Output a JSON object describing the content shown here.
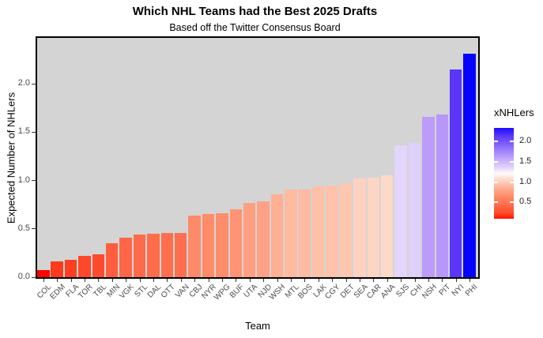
{
  "title": "Which NHL Teams had the Best 2025 Drafts",
  "subtitle": "Based off the Twitter Consensus Board",
  "chart_data": {
    "type": "bar",
    "title": "Which NHL Teams had the Best 2025 Drafts",
    "subtitle": "Based off the Twitter Consensus Board",
    "xlabel": "Team",
    "ylabel": "Expected Number of NHLers",
    "ylim": [
      0,
      2.4
    ],
    "grid": "off",
    "panel_background": "#D4D4D4",
    "y_tick_labels": [
      "0.0",
      "0.5",
      "1.0",
      "1.5",
      "2.0"
    ],
    "categories": [
      "COL",
      "EDM",
      "FLA",
      "TOR",
      "TBL",
      "MIN",
      "VGK",
      "STL",
      "DAL",
      "OTT",
      "VAN",
      "CBJ",
      "NYR",
      "WPG",
      "BUF",
      "UTA",
      "NJD",
      "WSH",
      "MTL",
      "BOS",
      "LAK",
      "CGY",
      "DET",
      "SEA",
      "CAR",
      "ANA",
      "SJS",
      "CHI",
      "NSH",
      "PIT",
      "NYI",
      "PHI"
    ],
    "values": [
      0.07,
      0.16,
      0.18,
      0.22,
      0.24,
      0.35,
      0.41,
      0.44,
      0.45,
      0.46,
      0.46,
      0.64,
      0.65,
      0.66,
      0.7,
      0.77,
      0.78,
      0.86,
      0.91,
      0.91,
      0.94,
      0.95,
      0.97,
      1.02,
      1.03,
      1.05,
      1.36,
      1.39,
      1.66,
      1.68,
      2.15,
      2.31
    ],
    "bar_colors": [
      "#FA0500",
      "#FF3A1D",
      "#FF3F22",
      "#FF482A",
      "#FF4C2E",
      "#FF5E3E",
      "#FF6646",
      "#FF6B4A",
      "#FF6C4C",
      "#FF6F4E",
      "#FF6F4F",
      "#FF8A68",
      "#FF8B69",
      "#FF8D6C",
      "#FF9374",
      "#FF9F81",
      "#FFA184",
      "#FFB092",
      "#FFBAA0",
      "#FFBAA1",
      "#FFC0A8",
      "#FFC2AB",
      "#FFC6B0",
      "#FDD2C0",
      "#FDD5C4",
      "#FDD9CA",
      "#E3D5FB",
      "#DFD0FB",
      "#BC9CFA",
      "#B897FA",
      "#5B36F9",
      "#0503FF"
    ],
    "legend": {
      "title": "xNHLers",
      "position": "right",
      "tick_labels": [
        "2.0",
        "1.5",
        "1.0",
        "0.5"
      ],
      "value_range": [
        0.095,
        2.34
      ],
      "gradient_low_color": "#FF1500",
      "gradient_mid_color": "#FDFBFA",
      "gradient_high_color": "#1A0DFE",
      "gradient_stops": [
        {
          "pos": 0,
          "color": "#1A0DFE"
        },
        {
          "pos": 8.5,
          "color": "#5A36FA"
        },
        {
          "pos": 29,
          "color": "#B092FB"
        },
        {
          "pos": 44,
          "color": "#E3D5FB"
        },
        {
          "pos": 50,
          "color": "#FDFBFA"
        },
        {
          "pos": 57,
          "color": "#FDD9CA"
        },
        {
          "pos": 66,
          "color": "#FFB092"
        },
        {
          "pos": 76,
          "color": "#FF8A68"
        },
        {
          "pos": 84,
          "color": "#FF6F4E"
        },
        {
          "pos": 93.5,
          "color": "#FF4C2E"
        },
        {
          "pos": 100,
          "color": "#FF1500"
        }
      ]
    }
  }
}
